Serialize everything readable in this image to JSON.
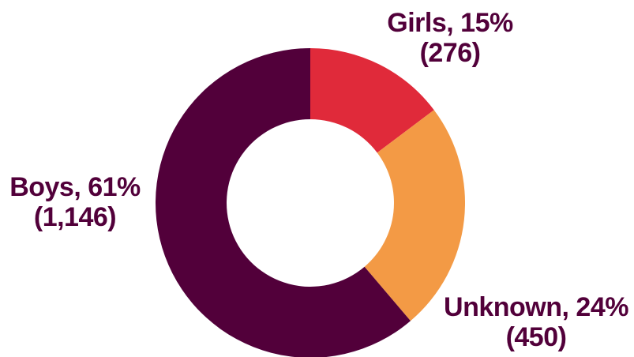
{
  "chart_data": {
    "type": "pie",
    "variant": "donut",
    "slices": [
      {
        "label": "Girls, 15%",
        "count_label": "(276)",
        "value": 276,
        "percent": 15,
        "color": "#e02a3a"
      },
      {
        "label": "Unknown, 24%",
        "count_label": "(450)",
        "value": 450,
        "percent": 24,
        "color": "#f39a45"
      },
      {
        "label": "Boys, 61%",
        "count_label": "(1,146)",
        "value": 1146,
        "percent": 61,
        "color": "#52003a"
      }
    ],
    "start_angle_deg": 0,
    "direction": "clockwise",
    "label_color": "#52003a",
    "legend": "none"
  }
}
